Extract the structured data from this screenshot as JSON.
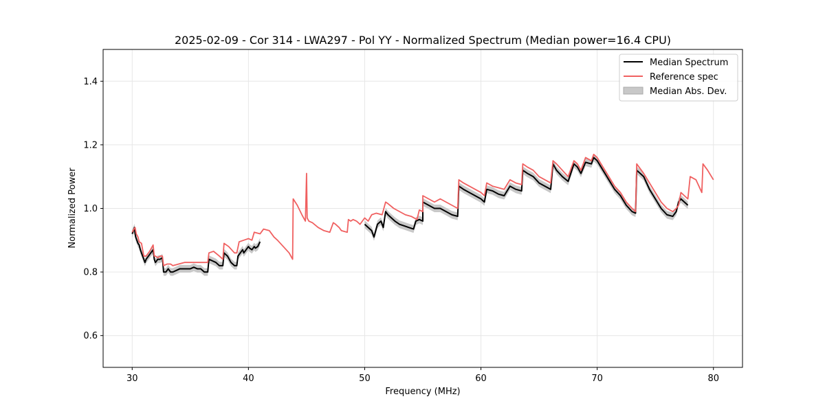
{
  "chart_data": {
    "type": "line",
    "title": "2025-02-09 - Cor 314 - LWA297 - Pol YY - Normalized Spectrum (Median power=16.4 CPU)",
    "xlabel": "Frequency (MHz)",
    "ylabel": "Normalized Power",
    "xlim": [
      27.5,
      82.5
    ],
    "ylim": [
      0.5,
      1.5
    ],
    "xticks": [
      30,
      40,
      50,
      60,
      70,
      80
    ],
    "yticks": [
      0.6,
      0.8,
      1.0,
      1.2,
      1.4
    ],
    "xtick_labels": [
      "30",
      "40",
      "50",
      "60",
      "70",
      "80"
    ],
    "ytick_labels": [
      "0.6",
      "0.8",
      "1.0",
      "1.2",
      "1.4"
    ],
    "grid": true,
    "legend_position": "top-right",
    "legend": [
      {
        "label": "Median Spectrum",
        "kind": "line",
        "color": "#000000"
      },
      {
        "label": "Reference spec",
        "kind": "line",
        "color": "#f06060"
      },
      {
        "label": "Median Abs. Dev.",
        "kind": "patch",
        "color": "#c8c8c8"
      }
    ],
    "series": [
      {
        "name": "Median Spectrum",
        "color": "#000000",
        "segments": [
          {
            "x": [
              30.0,
              30.1,
              30.2,
              30.25,
              30.3,
              30.4,
              30.5,
              30.6,
              30.7,
              30.8,
              30.9,
              31.0,
              31.1,
              31.2,
              31.4,
              31.6,
              31.8,
              31.9,
              32.0,
              32.2,
              32.4,
              32.6,
              32.7,
              32.9,
              33.1,
              33.3,
              33.5,
              33.8,
              34.1,
              34.4,
              34.7,
              35.0,
              35.3,
              35.6,
              35.9,
              36.2,
              36.5,
              36.6,
              36.9,
              37.2,
              37.5,
              37.8,
              37.9,
              38.2,
              38.5,
              38.8,
              39.0,
              39.1,
              39.3,
              39.5,
              39.6,
              39.8,
              40.0,
              40.1,
              40.3,
              40.5,
              40.6,
              40.8,
              41.0
            ],
            "y": [
              0.92,
              0.93,
              0.94,
              0.92,
              0.91,
              0.9,
              0.89,
              0.885,
              0.87,
              0.86,
              0.85,
              0.84,
              0.83,
              0.84,
              0.85,
              0.86,
              0.87,
              0.84,
              0.83,
              0.84,
              0.84,
              0.845,
              0.8,
              0.8,
              0.81,
              0.8,
              0.8,
              0.805,
              0.81,
              0.81,
              0.81,
              0.81,
              0.815,
              0.81,
              0.81,
              0.8,
              0.8,
              0.84,
              0.835,
              0.83,
              0.82,
              0.82,
              0.86,
              0.85,
              0.83,
              0.82,
              0.82,
              0.85,
              0.86,
              0.87,
              0.86,
              0.87,
              0.88,
              0.875,
              0.87,
              0.88,
              0.875,
              0.88,
              0.895
            ]
          },
          {
            "x": [
              50.0,
              50.3,
              50.6,
              50.8,
              51.1,
              51.4,
              51.6,
              51.8,
              52.0,
              52.3,
              52.6,
              53.0,
              53.4,
              53.8,
              54.2,
              54.4,
              54.7,
              55.0,
              55.0,
              55.5,
              56.0,
              56.5,
              57.0,
              57.5,
              58.0,
              58.1,
              58.5,
              59.0,
              59.5,
              60.0,
              60.3,
              60.5,
              61.0,
              61.5,
              62.0,
              62.5,
              63.0,
              63.5,
              63.6,
              64.0,
              64.5,
              65.0,
              65.5,
              66.0,
              66.2,
              66.5,
              67.0,
              67.5,
              68.0,
              68.3,
              68.6,
              69.0,
              69.5,
              69.7,
              70.0,
              70.5,
              71.0,
              71.5,
              72.0,
              72.5,
              73.0,
              73.3,
              73.4,
              74.0,
              74.5,
              75.0,
              75.5,
              76.0,
              76.5,
              76.8,
              77.0,
              77.2,
              77.5,
              77.8
            ],
            "y": [
              0.95,
              0.94,
              0.93,
              0.91,
              0.95,
              0.96,
              0.94,
              0.99,
              0.98,
              0.97,
              0.96,
              0.95,
              0.945,
              0.94,
              0.935,
              0.96,
              0.965,
              0.96,
              1.02,
              1.01,
              1.0,
              1.0,
              0.99,
              0.98,
              0.975,
              1.07,
              1.06,
              1.05,
              1.04,
              1.03,
              1.02,
              1.06,
              1.055,
              1.045,
              1.04,
              1.07,
              1.06,
              1.055,
              1.12,
              1.11,
              1.1,
              1.08,
              1.07,
              1.06,
              1.14,
              1.12,
              1.1,
              1.085,
              1.14,
              1.13,
              1.11,
              1.145,
              1.14,
              1.16,
              1.15,
              1.12,
              1.09,
              1.06,
              1.04,
              1.01,
              0.99,
              0.985,
              1.12,
              1.1,
              1.06,
              1.03,
              1.0,
              0.98,
              0.975,
              0.99,
              1.02,
              1.03,
              1.02,
              1.01
            ]
          }
        ]
      },
      {
        "name": "Reference spec",
        "color": "#f06060",
        "segments": [
          {
            "x": [
              30.0,
              30.15,
              30.25,
              30.35,
              30.5,
              30.6,
              30.8,
              30.9,
              31.0,
              31.2,
              31.5,
              31.8,
              31.9,
              32.0,
              32.2,
              32.4,
              32.6,
              32.7,
              33.0,
              33.3,
              33.5,
              34.0,
              34.5,
              35.0,
              35.5,
              36.0,
              36.5,
              36.6,
              37.0,
              37.5,
              37.8,
              37.9,
              38.3,
              38.8,
              39.0,
              39.2,
              39.6,
              40.0,
              40.3,
              40.5,
              41.0,
              41.3,
              41.8,
              42.2,
              42.5,
              43.0,
              43.5,
              43.8,
              43.85,
              44.2,
              44.6,
              44.9,
              45.0,
              45.05,
              45.2,
              45.5,
              46.0,
              46.5,
              47.0,
              47.3,
              47.5,
              47.8,
              48.0,
              48.5,
              48.6,
              48.8,
              49.0,
              49.3,
              49.6,
              50.0,
              50.3,
              50.6,
              51.0,
              51.5,
              51.8,
              52.0,
              52.5,
              53.0,
              53.5,
              54.0,
              54.5,
              54.7,
              55.0,
              55.0,
              55.5,
              56.0,
              56.5,
              57.0,
              57.5,
              58.0,
              58.1,
              58.5,
              59.0,
              59.5,
              60.0,
              60.3,
              60.5,
              61.0,
              61.5,
              62.0,
              62.5,
              63.0,
              63.5,
              63.6,
              64.0,
              64.5,
              65.0,
              65.5,
              66.0,
              66.2,
              66.5,
              67.0,
              67.5,
              68.0,
              68.3,
              68.6,
              69.0,
              69.5,
              69.7,
              70.0,
              70.5,
              71.0,
              71.5,
              72.0,
              72.5,
              73.0,
              73.3,
              73.4,
              74.0,
              74.5,
              75.0,
              75.5,
              76.0,
              76.5,
              76.8,
              77.0,
              77.2,
              77.5,
              77.8,
              78.0,
              78.5,
              79.0,
              79.1,
              79.5,
              80.0
            ],
            "y": [
              0.925,
              0.935,
              0.94,
              0.92,
              0.91,
              0.895,
              0.89,
              0.87,
              0.85,
              0.85,
              0.865,
              0.885,
              0.85,
              0.85,
              0.845,
              0.85,
              0.85,
              0.82,
              0.825,
              0.825,
              0.82,
              0.825,
              0.83,
              0.83,
              0.83,
              0.83,
              0.83,
              0.86,
              0.865,
              0.85,
              0.84,
              0.89,
              0.88,
              0.86,
              0.86,
              0.895,
              0.9,
              0.905,
              0.9,
              0.925,
              0.92,
              0.935,
              0.93,
              0.91,
              0.9,
              0.88,
              0.86,
              0.84,
              1.03,
              1.01,
              0.98,
              0.96,
              1.11,
              0.97,
              0.96,
              0.955,
              0.94,
              0.93,
              0.925,
              0.955,
              0.95,
              0.94,
              0.93,
              0.925,
              0.965,
              0.96,
              0.965,
              0.96,
              0.95,
              0.97,
              0.96,
              0.98,
              0.985,
              0.98,
              1.02,
              1.015,
              1.0,
              0.99,
              0.98,
              0.975,
              0.965,
              0.995,
              0.99,
              1.04,
              1.03,
              1.02,
              1.03,
              1.02,
              1.01,
              1.0,
              1.09,
              1.08,
              1.07,
              1.06,
              1.05,
              1.04,
              1.08,
              1.07,
              1.065,
              1.06,
              1.09,
              1.08,
              1.075,
              1.14,
              1.13,
              1.12,
              1.1,
              1.09,
              1.08,
              1.15,
              1.14,
              1.12,
              1.1,
              1.15,
              1.14,
              1.12,
              1.16,
              1.15,
              1.17,
              1.16,
              1.13,
              1.1,
              1.07,
              1.05,
              1.02,
              1.0,
              0.99,
              1.14,
              1.11,
              1.08,
              1.05,
              1.02,
              1.0,
              0.99,
              1.0,
              1.01,
              1.05,
              1.04,
              1.03,
              1.1,
              1.09,
              1.05,
              1.14,
              1.12,
              1.09
            ]
          }
        ]
      },
      {
        "name": "Median Abs. Dev.",
        "color": "#c8c8c8",
        "band_width": 0.012
      }
    ]
  }
}
